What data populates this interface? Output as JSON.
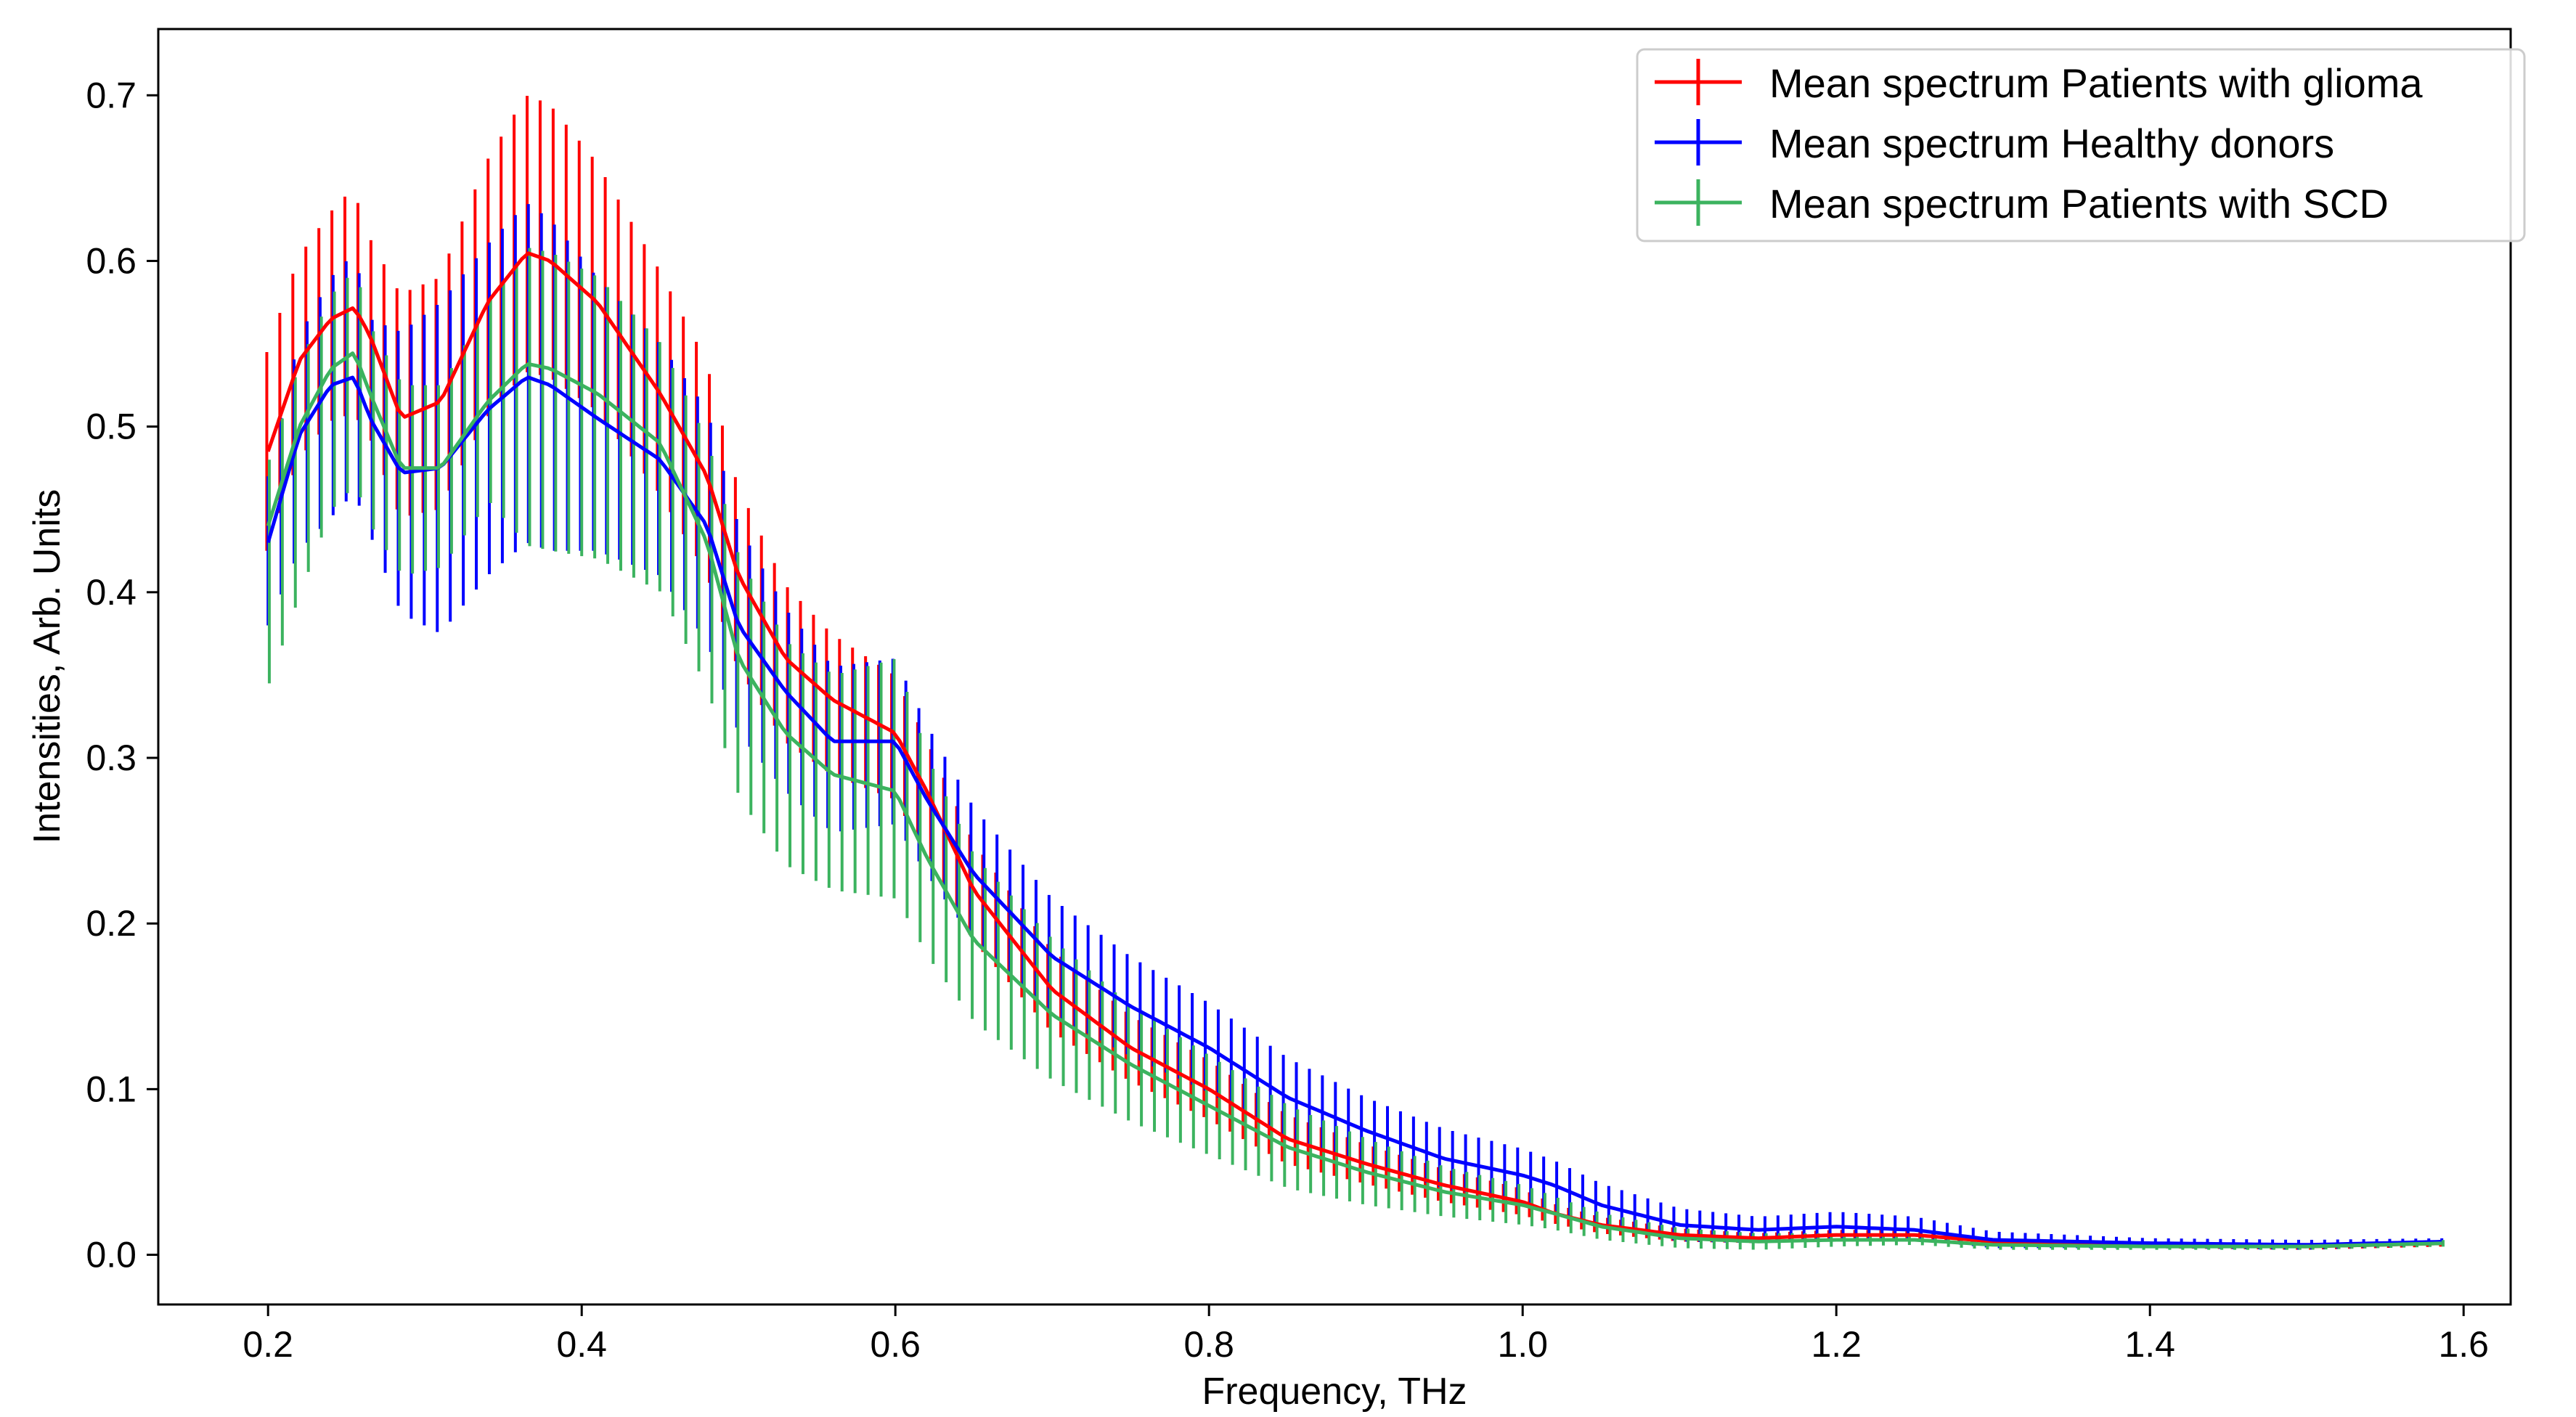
{
  "chart_data": {
    "type": "line",
    "title": "",
    "xlabel": "Frequency, THz",
    "ylabel": "Intensities, Arb. Units",
    "xlim": [
      0.13,
      1.63
    ],
    "ylim": [
      -0.03,
      0.74
    ],
    "xticks": [
      0.2,
      0.4,
      0.6,
      0.8,
      1.0,
      1.2,
      1.4,
      1.6
    ],
    "xtick_labels": [
      "0.2",
      "0.4",
      "0.6",
      "0.8",
      "1.0",
      "1.2",
      "1.4",
      "1.6"
    ],
    "yticks": [
      0.0,
      0.1,
      0.2,
      0.3,
      0.4,
      0.5,
      0.6,
      0.7
    ],
    "ytick_labels": [
      "0.0",
      "0.1",
      "0.2",
      "0.3",
      "0.4",
      "0.5",
      "0.6",
      "0.7"
    ],
    "legend_position": "top-right",
    "x_step": 0.0083,
    "series": [
      {
        "name": "Mean spectrum Patients with glioma",
        "color": "#ff0000",
        "anchor_x": [
          0.2,
          0.22,
          0.24,
          0.255,
          0.265,
          0.285,
          0.31,
          0.34,
          0.365,
          0.38,
          0.41,
          0.45,
          0.48,
          0.5,
          0.53,
          0.56,
          0.6,
          0.62,
          0.65,
          0.7,
          0.75,
          0.8,
          0.85,
          0.9,
          0.95,
          1.0,
          1.02,
          1.05,
          1.1,
          1.15,
          1.2,
          1.25,
          1.3,
          1.4,
          1.5,
          1.59
        ],
        "anchor_y": [
          0.485,
          0.54,
          0.565,
          0.572,
          0.555,
          0.505,
          0.515,
          0.575,
          0.605,
          0.6,
          0.575,
          0.52,
          0.47,
          0.41,
          0.36,
          0.335,
          0.315,
          0.28,
          0.22,
          0.16,
          0.125,
          0.1,
          0.07,
          0.055,
          0.042,
          0.032,
          0.025,
          0.018,
          0.012,
          0.01,
          0.012,
          0.012,
          0.008,
          0.006,
          0.005,
          0.007
        ],
        "err_lower": [
          0.06,
          0.06,
          0.062,
          0.064,
          0.06,
          0.06,
          0.065,
          0.07,
          0.072,
          0.07,
          0.065,
          0.06,
          0.058,
          0.055,
          0.05,
          0.045,
          0.04,
          0.035,
          0.03,
          0.025,
          0.02,
          0.018,
          0.015,
          0.012,
          0.01,
          0.008,
          0.006,
          0.005,
          0.004,
          0.003,
          0.003,
          0.003,
          0.002,
          0.002,
          0.002,
          0.002
        ],
        "err_upper": [
          0.06,
          0.062,
          0.064,
          0.072,
          0.06,
          0.075,
          0.075,
          0.085,
          0.095,
          0.095,
          0.085,
          0.075,
          0.07,
          0.055,
          0.045,
          0.04,
          0.035,
          0.032,
          0.03,
          0.025,
          0.02,
          0.018,
          0.015,
          0.012,
          0.01,
          0.008,
          0.006,
          0.005,
          0.004,
          0.003,
          0.003,
          0.003,
          0.002,
          0.002,
          0.002,
          0.002
        ]
      },
      {
        "name": "Mean spectrum Healthy donors",
        "color": "#0000ff",
        "anchor_x": [
          0.2,
          0.22,
          0.24,
          0.255,
          0.265,
          0.285,
          0.31,
          0.34,
          0.365,
          0.38,
          0.41,
          0.45,
          0.48,
          0.5,
          0.53,
          0.56,
          0.6,
          0.62,
          0.65,
          0.7,
          0.75,
          0.8,
          0.85,
          0.9,
          0.95,
          1.0,
          1.02,
          1.05,
          1.1,
          1.15,
          1.2,
          1.25,
          1.3,
          1.4,
          1.5,
          1.59
        ],
        "anchor_y": [
          0.43,
          0.495,
          0.525,
          0.53,
          0.505,
          0.472,
          0.475,
          0.51,
          0.53,
          0.525,
          0.505,
          0.48,
          0.44,
          0.38,
          0.34,
          0.31,
          0.31,
          0.275,
          0.23,
          0.18,
          0.15,
          0.125,
          0.095,
          0.075,
          0.058,
          0.048,
          0.042,
          0.03,
          0.018,
          0.015,
          0.017,
          0.015,
          0.009,
          0.007,
          0.006,
          0.008
        ],
        "err_lower": [
          0.05,
          0.07,
          0.08,
          0.07,
          0.07,
          0.085,
          0.1,
          0.1,
          0.1,
          0.1,
          0.08,
          0.07,
          0.07,
          0.065,
          0.06,
          0.055,
          0.05,
          0.045,
          0.04,
          0.035,
          0.03,
          0.027,
          0.024,
          0.02,
          0.018,
          0.016,
          0.015,
          0.013,
          0.01,
          0.008,
          0.007,
          0.006,
          0.005,
          0.003,
          0.003,
          0.002
        ],
        "err_upper": [
          0.04,
          0.06,
          0.065,
          0.075,
          0.06,
          0.085,
          0.1,
          0.1,
          0.105,
          0.1,
          0.085,
          0.07,
          0.07,
          0.06,
          0.05,
          0.045,
          0.05,
          0.045,
          0.04,
          0.035,
          0.03,
          0.027,
          0.024,
          0.02,
          0.018,
          0.016,
          0.015,
          0.013,
          0.01,
          0.008,
          0.009,
          0.008,
          0.005,
          0.003,
          0.003,
          0.002
        ]
      },
      {
        "name": "Mean spectrum Patients with SCD",
        "color": "#3cb35f",
        "anchor_x": [
          0.2,
          0.22,
          0.24,
          0.255,
          0.265,
          0.285,
          0.31,
          0.34,
          0.365,
          0.38,
          0.41,
          0.45,
          0.48,
          0.5,
          0.53,
          0.56,
          0.6,
          0.62,
          0.65,
          0.7,
          0.75,
          0.8,
          0.85,
          0.9,
          0.95,
          1.0,
          1.02,
          1.05,
          1.1,
          1.15,
          1.2,
          1.25,
          1.3,
          1.4,
          1.5,
          1.59
        ],
        "anchor_y": [
          0.44,
          0.5,
          0.535,
          0.545,
          0.52,
          0.475,
          0.475,
          0.515,
          0.538,
          0.535,
          0.52,
          0.49,
          0.43,
          0.36,
          0.315,
          0.29,
          0.28,
          0.24,
          0.19,
          0.145,
          0.115,
          0.09,
          0.065,
          0.05,
          0.038,
          0.03,
          0.025,
          0.017,
          0.01,
          0.008,
          0.009,
          0.009,
          0.006,
          0.005,
          0.005,
          0.007
        ],
        "err_lower": [
          0.095,
          0.1,
          0.085,
          0.08,
          0.08,
          0.065,
          0.06,
          0.06,
          0.11,
          0.11,
          0.1,
          0.09,
          0.09,
          0.085,
          0.08,
          0.07,
          0.065,
          0.06,
          0.05,
          0.04,
          0.035,
          0.03,
          0.025,
          0.02,
          0.015,
          0.012,
          0.01,
          0.008,
          0.006,
          0.005,
          0.004,
          0.003,
          0.003,
          0.002,
          0.002,
          0.002
        ],
        "err_upper": [
          0.04,
          0.04,
          0.045,
          0.05,
          0.04,
          0.05,
          0.05,
          0.06,
          0.07,
          0.07,
          0.07,
          0.06,
          0.06,
          0.06,
          0.055,
          0.06,
          0.08,
          0.06,
          0.05,
          0.045,
          0.035,
          0.03,
          0.025,
          0.02,
          0.015,
          0.012,
          0.01,
          0.008,
          0.006,
          0.005,
          0.004,
          0.003,
          0.003,
          0.002,
          0.002,
          0.002
        ]
      }
    ]
  }
}
